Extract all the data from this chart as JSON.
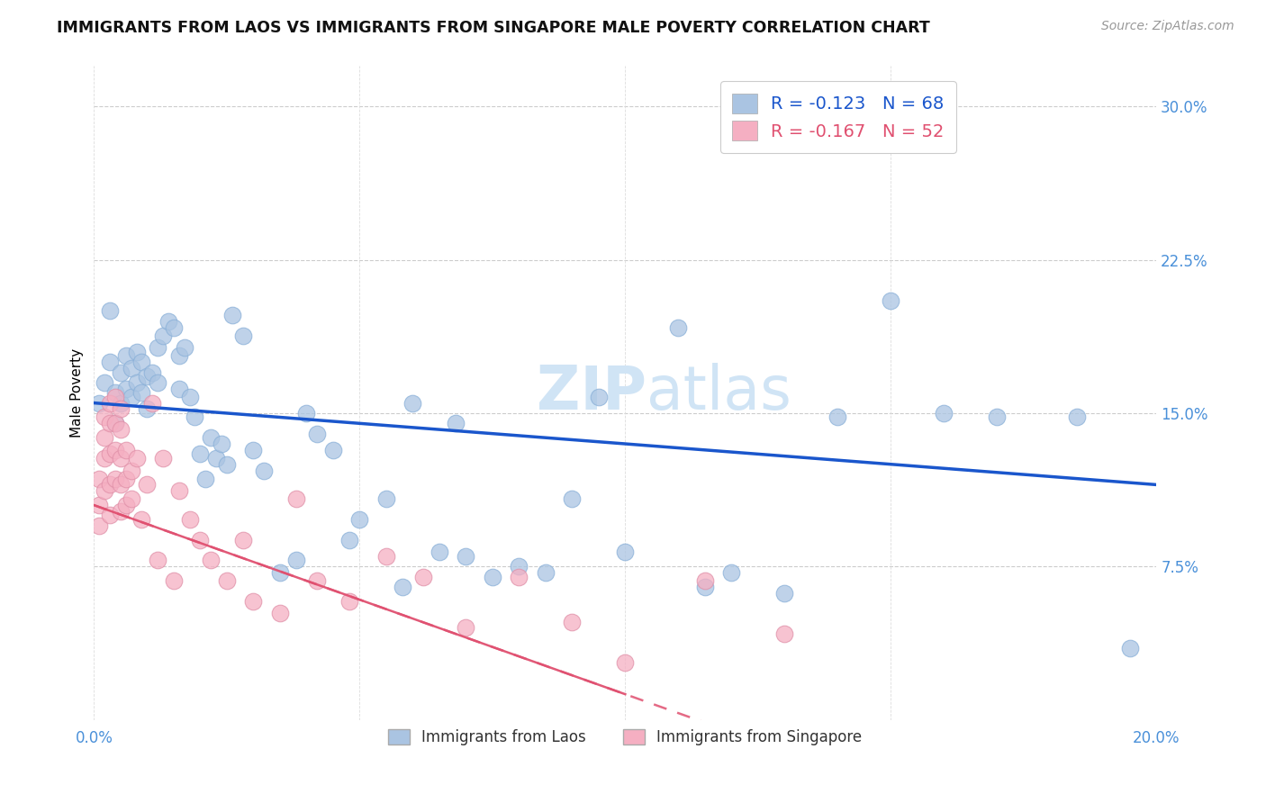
{
  "title": "IMMIGRANTS FROM LAOS VS IMMIGRANTS FROM SINGAPORE MALE POVERTY CORRELATION CHART",
  "source": "Source: ZipAtlas.com",
  "ylabel": "Male Poverty",
  "xlim": [
    0.0,
    0.2
  ],
  "ylim": [
    0.0,
    0.32
  ],
  "xticks": [
    0.0,
    0.05,
    0.1,
    0.15,
    0.2
  ],
  "xticklabels": [
    "0.0%",
    "",
    "",
    "",
    "20.0%"
  ],
  "yticks_right": [
    0.075,
    0.15,
    0.225,
    0.3
  ],
  "yticklabels_right": [
    "7.5%",
    "15.0%",
    "22.5%",
    "30.0%"
  ],
  "legend_laos_label": "Immigrants from Laos",
  "legend_singapore_label": "Immigrants from Singapore",
  "R_laos": "-0.123",
  "N_laos": "68",
  "R_singapore": "-0.167",
  "N_singapore": "52",
  "laos_color": "#aac4e2",
  "singapore_color": "#f5afc2",
  "laos_line_color": "#1a56cc",
  "singapore_line_color": "#e05070",
  "watermark_color": "#d0e4f5",
  "tick_color": "#4a90d9",
  "laos_x": [
    0.001,
    0.002,
    0.003,
    0.003,
    0.004,
    0.004,
    0.005,
    0.005,
    0.006,
    0.006,
    0.007,
    0.007,
    0.008,
    0.008,
    0.009,
    0.009,
    0.01,
    0.01,
    0.011,
    0.012,
    0.012,
    0.013,
    0.014,
    0.015,
    0.016,
    0.016,
    0.017,
    0.018,
    0.019,
    0.02,
    0.021,
    0.022,
    0.023,
    0.024,
    0.025,
    0.026,
    0.028,
    0.03,
    0.032,
    0.035,
    0.038,
    0.04,
    0.042,
    0.045,
    0.048,
    0.05,
    0.055,
    0.058,
    0.06,
    0.065,
    0.068,
    0.07,
    0.075,
    0.08,
    0.085,
    0.09,
    0.095,
    0.1,
    0.11,
    0.115,
    0.12,
    0.13,
    0.14,
    0.15,
    0.16,
    0.17,
    0.185,
    0.195
  ],
  "laos_y": [
    0.155,
    0.165,
    0.2,
    0.175,
    0.16,
    0.145,
    0.17,
    0.155,
    0.178,
    0.162,
    0.172,
    0.158,
    0.18,
    0.165,
    0.175,
    0.16,
    0.168,
    0.152,
    0.17,
    0.182,
    0.165,
    0.188,
    0.195,
    0.192,
    0.178,
    0.162,
    0.182,
    0.158,
    0.148,
    0.13,
    0.118,
    0.138,
    0.128,
    0.135,
    0.125,
    0.198,
    0.188,
    0.132,
    0.122,
    0.072,
    0.078,
    0.15,
    0.14,
    0.132,
    0.088,
    0.098,
    0.108,
    0.065,
    0.155,
    0.082,
    0.145,
    0.08,
    0.07,
    0.075,
    0.072,
    0.108,
    0.158,
    0.082,
    0.192,
    0.065,
    0.072,
    0.062,
    0.148,
    0.205,
    0.15,
    0.148,
    0.148,
    0.035
  ],
  "singapore_x": [
    0.001,
    0.001,
    0.001,
    0.002,
    0.002,
    0.002,
    0.002,
    0.003,
    0.003,
    0.003,
    0.003,
    0.003,
    0.004,
    0.004,
    0.004,
    0.004,
    0.005,
    0.005,
    0.005,
    0.005,
    0.005,
    0.006,
    0.006,
    0.006,
    0.007,
    0.007,
    0.008,
    0.009,
    0.01,
    0.011,
    0.012,
    0.013,
    0.015,
    0.016,
    0.018,
    0.02,
    0.022,
    0.025,
    0.028,
    0.03,
    0.035,
    0.038,
    0.042,
    0.048,
    0.055,
    0.062,
    0.07,
    0.08,
    0.09,
    0.1,
    0.115,
    0.13
  ],
  "singapore_y": [
    0.118,
    0.105,
    0.095,
    0.148,
    0.138,
    0.128,
    0.112,
    0.155,
    0.145,
    0.13,
    0.115,
    0.1,
    0.158,
    0.145,
    0.132,
    0.118,
    0.152,
    0.142,
    0.128,
    0.115,
    0.102,
    0.132,
    0.118,
    0.105,
    0.122,
    0.108,
    0.128,
    0.098,
    0.115,
    0.155,
    0.078,
    0.128,
    0.068,
    0.112,
    0.098,
    0.088,
    0.078,
    0.068,
    0.088,
    0.058,
    0.052,
    0.108,
    0.068,
    0.058,
    0.08,
    0.07,
    0.045,
    0.07,
    0.048,
    0.028,
    0.068,
    0.042
  ]
}
